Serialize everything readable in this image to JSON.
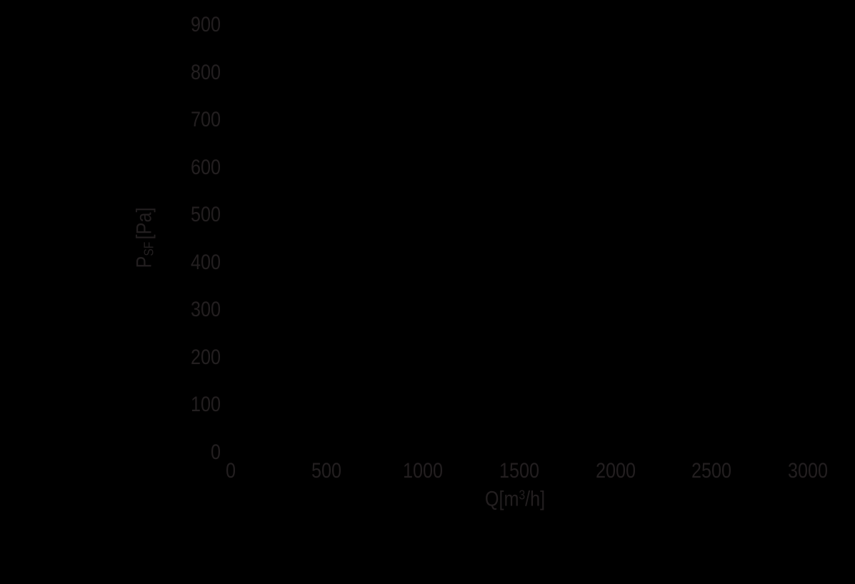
{
  "page": {
    "background_color": "#000000",
    "text_color": "#231f20"
  },
  "axis_titles": {
    "y": {
      "main": "P",
      "sub": "SF",
      "unit": "[Pa]"
    },
    "x": {
      "main": "Q[m",
      "sup": "3",
      "unit": "/h]"
    }
  },
  "chart_data": {
    "type": "line",
    "title": "",
    "xlabel": "Q[m³/h]",
    "ylabel": "PSF [Pa]",
    "xlim": [
      0,
      3000
    ],
    "ylim": [
      0,
      900
    ],
    "x_ticks": [
      0,
      500,
      1000,
      1500,
      2000,
      2500,
      3000
    ],
    "y_ticks": [
      0,
      100,
      200,
      300,
      400,
      500,
      600,
      700,
      800,
      900
    ],
    "grid": false,
    "legend": false,
    "series": []
  }
}
